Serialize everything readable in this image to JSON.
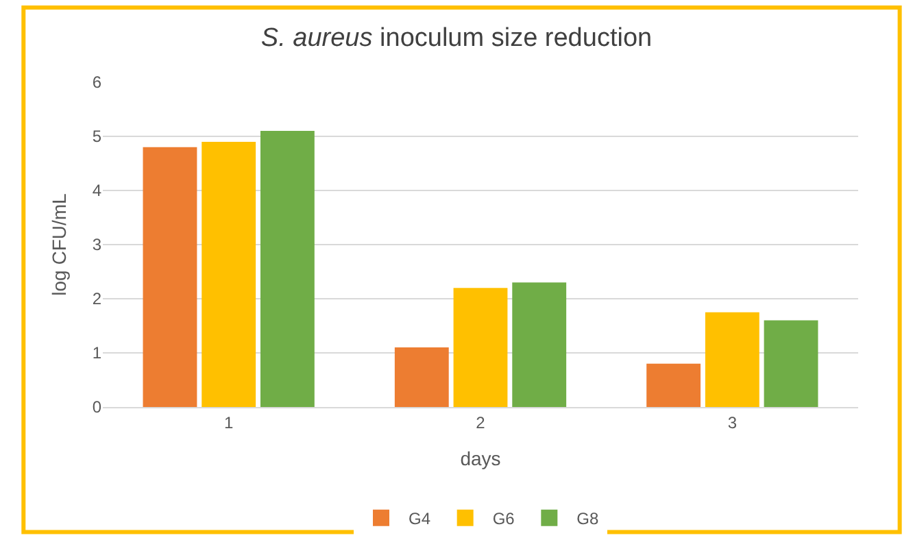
{
  "chart_data": {
    "type": "bar",
    "title": "S. aureus inoculum size reduction",
    "xlabel": "days",
    "ylabel": "log CFU/mL",
    "categories": [
      "1",
      "2",
      "3"
    ],
    "series": [
      {
        "name": "G4",
        "color": "#ed7d31",
        "values": [
          4.8,
          1.1,
          0.8
        ]
      },
      {
        "name": "G6",
        "color": "#ffc000",
        "values": [
          4.9,
          2.2,
          1.75
        ]
      },
      {
        "name": "G8",
        "color": "#70ad47",
        "values": [
          5.1,
          2.3,
          1.6
        ]
      }
    ],
    "ylim": [
      0,
      6
    ],
    "yticks": [
      0,
      1,
      2,
      3,
      4,
      5,
      6
    ],
    "grid": "y",
    "legend": "bottom"
  }
}
